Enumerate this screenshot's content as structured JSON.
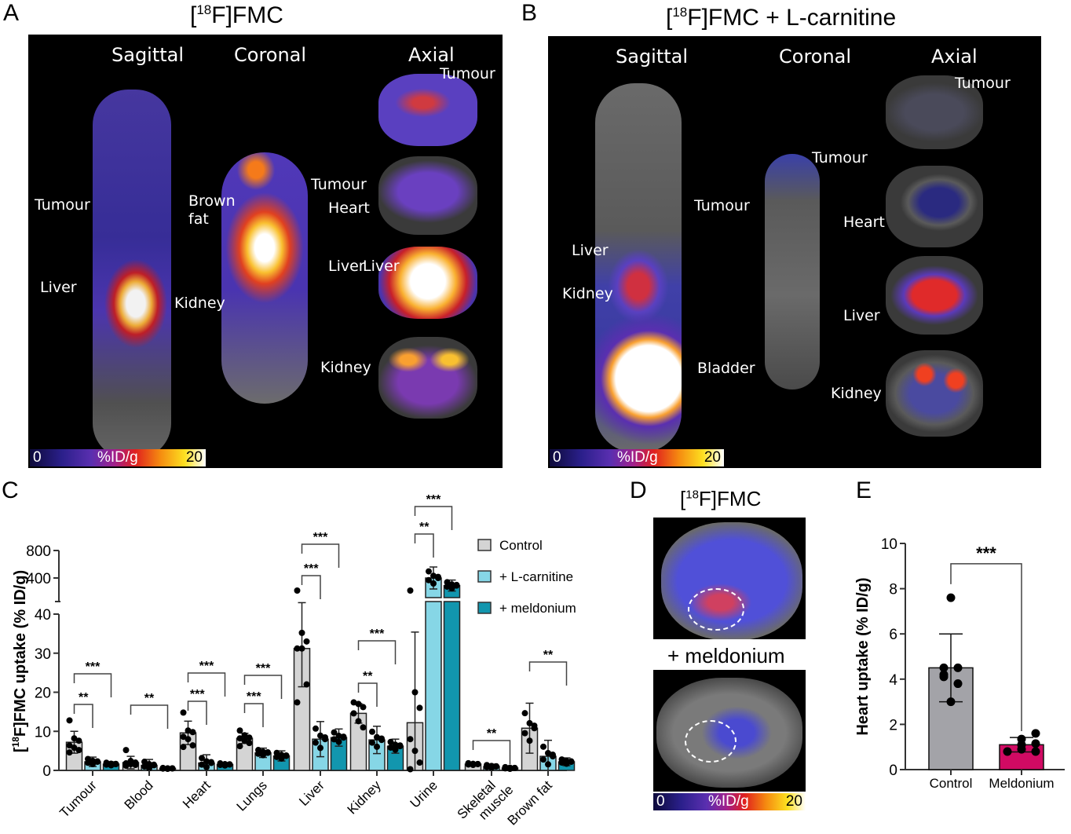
{
  "panels": {
    "A": {
      "letter": "A",
      "title_pre": "[",
      "title_sup": "18",
      "title_post": "F]FMC",
      "views": [
        "Sagittal",
        "Coronal",
        "Axial"
      ],
      "labels": {
        "sag_tumour": "Tumour",
        "sag_liver": "Liver",
        "cor_brown_fat": "Brown\nfat",
        "cor_tumour": "Tumour",
        "cor_liver": "Liver",
        "cor_kidney": "Kidney",
        "ax_tumour": "Tumour",
        "ax_heart": "Heart",
        "ax_liver": "Liver",
        "ax_kidney": "Kidney"
      },
      "colorbar": {
        "min": "0",
        "unit": "%ID/g",
        "max": "20"
      }
    },
    "B": {
      "letter": "B",
      "title_pre": "[",
      "title_sup": "18",
      "title_post": "F]FMC  +  L-carnitine",
      "views": [
        "Sagittal",
        "Coronal",
        "Axial"
      ],
      "labels": {
        "sag_tumour": "Tumour",
        "sag_liver": "Liver",
        "sag_kidney": "Kidney",
        "sag_bladder": "Bladder",
        "cor_tumour": "Tumour",
        "ax_tumour": "Tumour",
        "ax_heart": "Heart",
        "ax_liver": "Liver",
        "ax_kidney": "Kidney"
      },
      "colorbar": {
        "min": "0",
        "unit": "%ID/g",
        "max": "20"
      }
    },
    "C": {
      "letter": "C"
    },
    "D": {
      "letter": "D",
      "title_pre": "[",
      "title_sup": "18",
      "title_post": "F]FMC",
      "subtitle": "+ meldonium",
      "colorbar": {
        "min": "0",
        "unit": "%ID/g",
        "max": "20"
      }
    },
    "E": {
      "letter": "E"
    }
  },
  "colors": {
    "control": "#d4d4d4",
    "l_carnitine": "#86d6e6",
    "meldonium": "#1296ae",
    "control_E": "#a3a3a8",
    "meldonium_E": "#d10a63"
  },
  "chart_data": [
    {
      "id": "C",
      "type": "bar",
      "ylabel_pre": "[",
      "ylabel_sup": "18",
      "ylabel_post": "F]FMC uptake  (% ID/g)",
      "categories": [
        "Tumour",
        "Blood",
        "Heart",
        "Lungs",
        "Liver",
        "Kidney",
        "Urine",
        "Skeletal\nmuscle",
        "Brown fat"
      ],
      "y_axis": {
        "broken": true,
        "lower_range": [
          0,
          40
        ],
        "lower_ticks": [
          0,
          10,
          20,
          30,
          40
        ],
        "upper_ticks": [
          400,
          800
        ]
      },
      "legend": {
        "position": "top-right",
        "entries": [
          "Control",
          "+ L-carnitine",
          "+ meldonium"
        ]
      },
      "series": [
        {
          "name": "Control",
          "values": [
            7.2,
            2.0,
            9.6,
            8.2,
            31.2,
            14.6,
            12.2,
            1.6,
            10.8
          ],
          "sd": [
            2.8,
            1.6,
            3.0,
            1.3,
            9.8,
            2.5,
            23.2,
            0.4,
            6.4
          ],
          "points": [
            [
              12.8,
              8.2,
              7.6,
              6.4,
              5.8,
              5.2,
              4.6
            ],
            [
              5.2,
              2.4,
              2.0,
              1.8,
              1.6,
              1.4,
              1.2
            ],
            [
              14.8,
              10.2,
              9.8,
              8.6,
              8.0,
              6.4,
              6.0
            ],
            [
              10.2,
              9.0,
              8.4,
              8.2,
              7.6,
              7.0,
              6.2
            ],
            [
              43.0,
              35.2,
              33.0,
              31.2,
              31.2,
              22.0,
              17.4
            ],
            [
              17.4,
              17.0,
              16.2,
              14.6,
              12.6,
              11.0
            ],
            [
              45.0,
              20.0,
              16.0,
              8.0,
              5.0,
              2.0,
              0.3
            ]
          ]
        },
        {
          "name": "+ L-carnitine",
          "values": [
            2.2,
            1.3,
            1.9,
            4.5,
            8.0,
            7.8,
            400,
            1.0,
            3.6
          ],
          "sd": [
            1.2,
            1.5,
            2.1,
            1.2,
            4.5,
            3.5,
            160,
            0.6,
            4.1
          ]
        },
        {
          "name": "+ meldonium",
          "values": [
            1.6,
            0.5,
            1.5,
            3.7,
            8.4,
            6.2,
            290,
            0.6,
            2.2
          ],
          "sd": [
            0.6,
            0.2,
            0.5,
            1.3,
            2.2,
            1.8,
            80,
            0.4,
            1.0
          ]
        }
      ],
      "significance": [
        {
          "category": "Tumour",
          "pair": [
            "Control",
            "+ L-carnitine"
          ],
          "label": "**"
        },
        {
          "category": "Tumour",
          "pair": [
            "Control",
            "+ meldonium"
          ],
          "label": "***"
        },
        {
          "category": "Blood",
          "pair": [
            "Control",
            "+ meldonium"
          ],
          "label": "**"
        },
        {
          "category": "Heart",
          "pair": [
            "Control",
            "+ L-carnitine"
          ],
          "label": "***"
        },
        {
          "category": "Heart",
          "pair": [
            "Control",
            "+ meldonium"
          ],
          "label": "***"
        },
        {
          "category": "Lungs",
          "pair": [
            "Control",
            "+ L-carnitine"
          ],
          "label": "***"
        },
        {
          "category": "Lungs",
          "pair": [
            "Control",
            "+ meldonium"
          ],
          "label": "***"
        },
        {
          "category": "Liver",
          "pair": [
            "Control",
            "+ L-carnitine"
          ],
          "label": "***"
        },
        {
          "category": "Liver",
          "pair": [
            "Control",
            "+ meldonium"
          ],
          "label": "***"
        },
        {
          "category": "Kidney",
          "pair": [
            "Control",
            "+ L-carnitine"
          ],
          "label": "**"
        },
        {
          "category": "Kidney",
          "pair": [
            "Control",
            "+ meldonium"
          ],
          "label": "***"
        },
        {
          "category": "Urine",
          "pair": [
            "Control",
            "+ L-carnitine"
          ],
          "label": "**"
        },
        {
          "category": "Urine",
          "pair": [
            "Control",
            "+ meldonium"
          ],
          "label": "***"
        },
        {
          "category": "Skeletal\nmuscle",
          "pair": [
            "Control",
            "+ meldonium"
          ],
          "label": "**"
        },
        {
          "category": "Brown fat",
          "pair": [
            "Control",
            "+ meldonium"
          ],
          "label": "**"
        }
      ]
    },
    {
      "id": "E",
      "type": "bar",
      "ylabel": "Heart uptake (% ID/g)",
      "categories": [
        "Control",
        "Meldonium"
      ],
      "values": [
        4.5,
        1.1
      ],
      "sd": [
        1.5,
        0.32
      ],
      "points": [
        [
          7.6,
          4.5,
          4.5,
          4.2,
          4.1,
          3.8,
          3.0
        ],
        [
          1.6,
          1.35,
          1.15,
          1.1,
          0.9,
          0.8,
          0.8
        ]
      ],
      "ylim": [
        0,
        10
      ],
      "yticks": [
        0,
        2,
        4,
        6,
        8,
        10
      ],
      "significance": [
        {
          "pair": [
            "Control",
            "Meldonium"
          ],
          "label": "***"
        }
      ]
    }
  ]
}
